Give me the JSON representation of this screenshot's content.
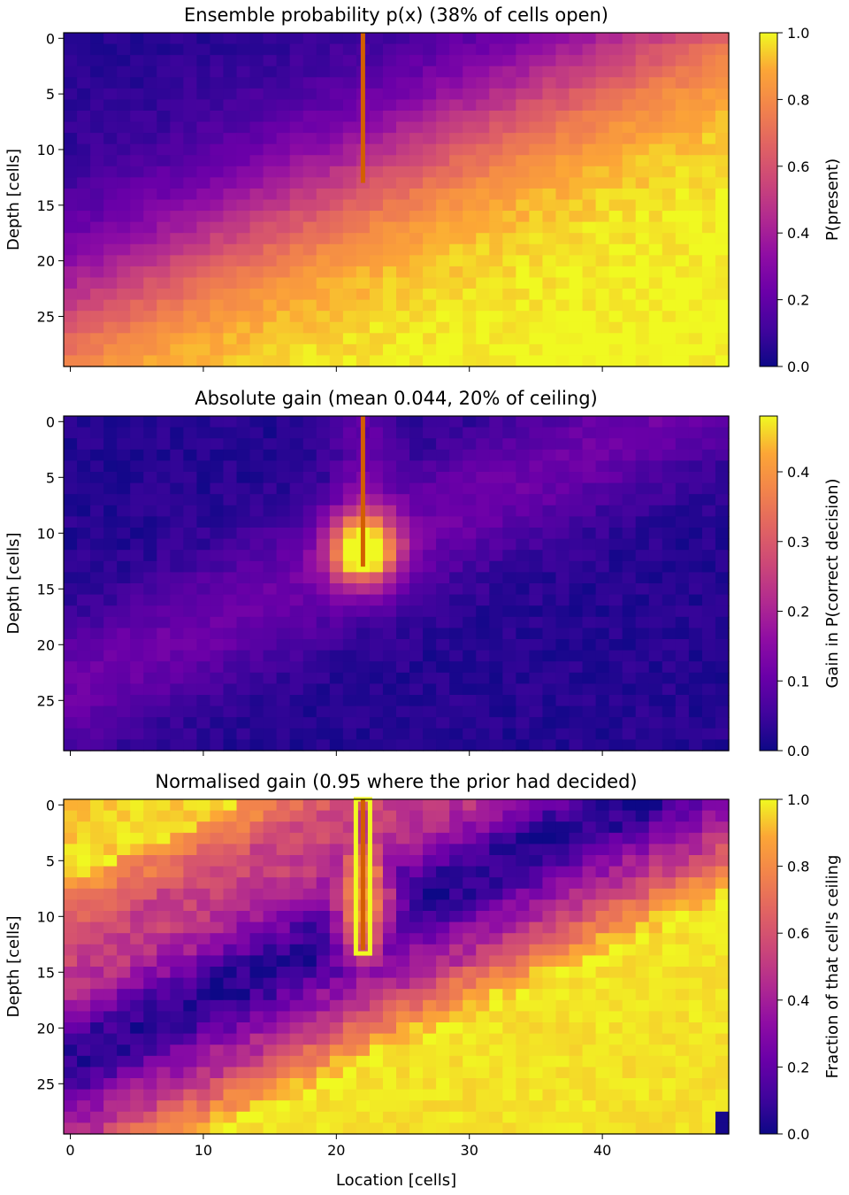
{
  "chart_data": [
    {
      "type": "heatmap",
      "title": "Ensemble probability p(x) (38% of cells open)",
      "xlabel": "",
      "ylabel": "Depth [cells]",
      "colorbar_label": "P(present)",
      "colormap": "plasma",
      "grid": false,
      "x_range": [
        0,
        49
      ],
      "y_range": [
        0,
        29
      ],
      "y_inverted": true,
      "x_ticks": [
        0,
        10,
        20,
        30,
        40
      ],
      "x_ticklabels": [
        "",
        "",
        "",
        "",
        ""
      ],
      "y_ticks": [
        0,
        5,
        10,
        15,
        20,
        25
      ],
      "y_ticklabels": [
        "0",
        "5",
        "10",
        "15",
        "20",
        "25"
      ],
      "colorbar_range": [
        0,
        1
      ],
      "colorbar_ticks": [
        0.0,
        0.2,
        0.4,
        0.6,
        0.8,
        1.0
      ],
      "colorbar_ticklabels": [
        "0.0",
        "0.2",
        "0.4",
        "0.6",
        "0.8",
        "1.0"
      ],
      "field": "probability: low (~0.05) at top-left, rising toward 1.0 along a band sloping down-left; bottom-right ~1.0",
      "borehole": {
        "x": 22,
        "depth_from": 0,
        "depth_to": 13,
        "color": "#d35f00"
      }
    },
    {
      "type": "heatmap",
      "title": "Absolute gain (mean 0.044, 20% of ceiling)",
      "xlabel": "",
      "ylabel": "Depth [cells]",
      "colorbar_label": "Gain in P(correct decision)",
      "colormap": "plasma",
      "grid": false,
      "x_range": [
        0,
        49
      ],
      "y_range": [
        0,
        29
      ],
      "y_inverted": true,
      "x_ticks": [
        0,
        10,
        20,
        30,
        40
      ],
      "x_ticklabels": [
        "",
        "",
        "",
        "",
        ""
      ],
      "y_ticks": [
        0,
        5,
        10,
        15,
        20,
        25
      ],
      "y_ticklabels": [
        "0",
        "5",
        "10",
        "15",
        "20",
        "25"
      ],
      "colorbar_range": [
        0,
        0.48
      ],
      "colorbar_ticks": [
        0.0,
        0.1,
        0.2,
        0.3,
        0.4
      ],
      "colorbar_ticklabels": [
        "0.0",
        "0.1",
        "0.2",
        "0.3",
        "0.4"
      ],
      "field": "gain: peak ~0.45 near borehole bottom (x 22, depth 12), elevated ~0.1 along uncertain band, ~0.02 elsewhere",
      "borehole": {
        "x": 22,
        "depth_from": 0,
        "depth_to": 13,
        "color": "#d35f00"
      }
    },
    {
      "type": "heatmap",
      "title": "Normalised gain (0.95 where the prior had decided)",
      "xlabel": "Location [cells]",
      "ylabel": "Depth [cells]",
      "colorbar_label": "Fraction of that cell's ceiling",
      "colormap": "plasma",
      "grid": false,
      "x_range": [
        0,
        49
      ],
      "y_range": [
        0,
        29
      ],
      "y_inverted": true,
      "x_ticks": [
        0,
        10,
        20,
        30,
        40
      ],
      "x_ticklabels": [
        "0",
        "10",
        "20",
        "30",
        "40"
      ],
      "y_ticks": [
        0,
        5,
        10,
        15,
        20,
        25
      ],
      "y_ticklabels": [
        "0",
        "5",
        "10",
        "15",
        "20",
        "25"
      ],
      "colorbar_range": [
        0,
        1
      ],
      "colorbar_ticks": [
        0.0,
        0.2,
        0.4,
        0.6,
        0.8,
        1.0
      ],
      "colorbar_ticklabels": [
        "0.0",
        "0.2",
        "0.4",
        "0.6",
        "0.8",
        "1.0"
      ],
      "field": "normalised gain: ~1.0 in top-left corner and bottom-right region, ~0.8 around borehole, ~0.05 in the uncertain band",
      "borehole": {
        "x": 22,
        "depth_from": 0,
        "depth_to": 13,
        "color": "#d35f00",
        "outline_color": "#f0f921"
      }
    }
  ]
}
